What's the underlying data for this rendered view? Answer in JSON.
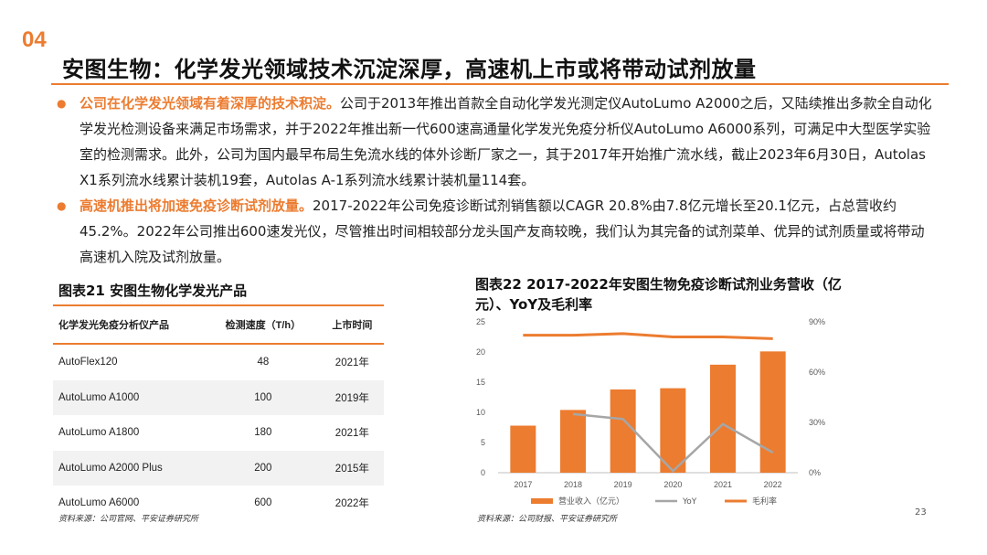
{
  "page_number": "04",
  "title": "安图生物：化学发光领域技术沉淀深厚，高速机上市或将带动试剂放量",
  "bullets": [
    {
      "highlight": "公司在化学发光领域有着深厚的技术积淀。",
      "text": "公司于2013年推出首款全自动化学发光测定仪AutoLumo A2000之后，又陆续推出多款全自动化学发光检测设备来满足市场需求，并于2022年推出新一代600速高通量化学发光免疫分析仪AutoLumo A6000系列，可满足中大型医学实验室的检测需求。此外，公司为国内最早布局生免流水线的体外诊断厂家之一，其于2017年开始推广流水线，截止2023年6月30日，Autolas X1系列流水线累计装机19套，Autolas A-1系列流水线累计装机量114套。"
    },
    {
      "highlight": "高速机推出将加速免疫诊断试剂放量。",
      "text": "2017-2022年公司免疫诊断试剂销售额以CAGR 20.8%由7.8亿元增长至20.1亿元，占总营收约45.2%。2022年公司推出600速发光仪，尽管推出时间相较部分龙头国产友商较晚，我们认为其完备的试剂菜单、优异的试剂质量或将带动高速机入院及试剂放量。"
    }
  ],
  "table": {
    "title": "图表21 安图生物化学发光产品",
    "headers": [
      "化学发光免疫分析仪产品",
      "检测速度（T/h）",
      "上市时间"
    ],
    "rows": [
      [
        "AutoFlex120",
        "48",
        "2021年"
      ],
      [
        "AutoLumo A1000",
        "100",
        "2019年"
      ],
      [
        "AutoLumo A1800",
        "180",
        "2021年"
      ],
      [
        "AutoLumo A2000 Plus",
        "200",
        "2015年"
      ],
      [
        "AutoLumo A6000",
        "600",
        "2022年"
      ]
    ],
    "source": "资料来源：公司官网、平安证券研究所"
  },
  "chart_title": "图表22 2017-2022年安图生物免疫诊断试剂业务营收（亿元）、YoY及毛利率",
  "chart_source": "资料来源：公司财报、平安证券研究所",
  "footer_page": "23",
  "colors": {
    "accent": "#ec7c30",
    "bar": "#ec7c30",
    "yoy": "#a6a6a6",
    "margin": "#ec7c30"
  },
  "chart_data": {
    "type": "bar",
    "categories": [
      "2017",
      "2018",
      "2019",
      "2020",
      "2021",
      "2022"
    ],
    "series": [
      {
        "name": "营业收入（亿元）",
        "type": "bar",
        "axis": "left",
        "values": [
          7.8,
          10.4,
          13.8,
          14.0,
          17.9,
          20.1
        ]
      },
      {
        "name": "YoY",
        "type": "line",
        "axis": "right",
        "values": [
          null,
          35,
          32,
          1,
          29,
          12
        ]
      },
      {
        "name": "毛利率",
        "type": "line",
        "axis": "right",
        "values": [
          null,
          null,
          null,
          null,
          null,
          null
        ],
        "approx_values": [
          82,
          82,
          83,
          81,
          81,
          80
        ]
      }
    ],
    "y_left": {
      "ticks": [
        "0",
        "5",
        "10",
        "15",
        "20",
        "25"
      ],
      "ylim": [
        0,
        25
      ]
    },
    "y_right": {
      "ticks": [
        "0%",
        "30%",
        "60%",
        "90%"
      ],
      "ylim": [
        0,
        90
      ]
    },
    "legend": "bottom"
  }
}
